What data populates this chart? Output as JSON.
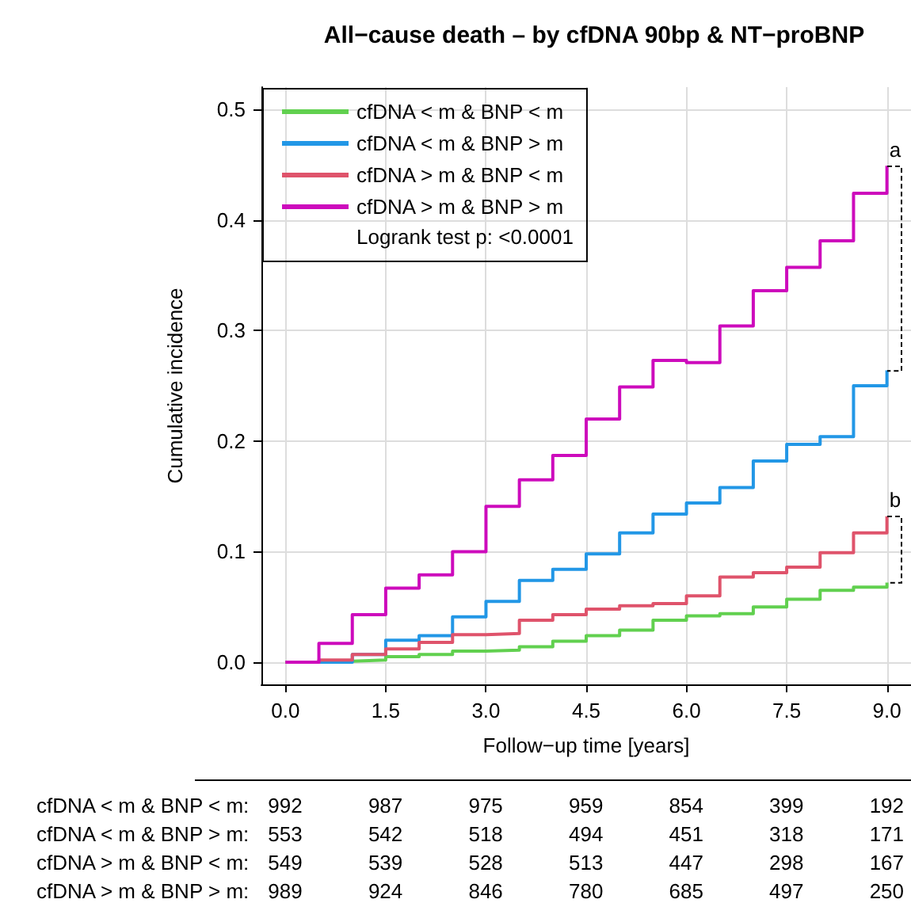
{
  "chart_data": {
    "type": "step",
    "title": "All−cause death – by cfDNA 90bp & NT−proBNP",
    "xlabel": "Follow−up time [years]",
    "ylabel": "Cumulative incidence",
    "x": [
      0,
      0.5,
      1,
      1.5,
      2,
      2.5,
      3,
      3.5,
      4,
      4.5,
      5,
      5.5,
      6,
      6.5,
      7,
      7.5,
      8,
      8.5,
      9
    ],
    "series": [
      {
        "name": "cfDNA < m & BNP < m",
        "color": "#61d04f",
        "values": [
          0,
          0.001,
          0.002,
          0.005,
          0.007,
          0.01,
          0.011,
          0.014,
          0.019,
          0.024,
          0.029,
          0.038,
          0.042,
          0.044,
          0.05,
          0.057,
          0.065,
          0.068,
          0.072
        ]
      },
      {
        "name": "cfDNA < m & BNP > m",
        "color": "#2297e6",
        "values": [
          0,
          0,
          0.007,
          0.02,
          0.024,
          0.041,
          0.055,
          0.074,
          0.084,
          0.098,
          0.117,
          0.134,
          0.144,
          0.158,
          0.182,
          0.197,
          0.204,
          0.25,
          0.264
        ]
      },
      {
        "name": "cfDNA > m & BNP < m",
        "color": "#df536b",
        "values": [
          0,
          0.002,
          0.007,
          0.012,
          0.018,
          0.025,
          0.026,
          0.038,
          0.043,
          0.048,
          0.051,
          0.053,
          0.06,
          0.077,
          0.081,
          0.086,
          0.099,
          0.117,
          0.132
        ]
      },
      {
        "name": "cfDNA > m & BNP > m",
        "color": "#cd0bbc",
        "values": [
          0,
          0.017,
          0.043,
          0.067,
          0.079,
          0.1,
          0.141,
          0.165,
          0.187,
          0.22,
          0.249,
          0.273,
          0.271,
          0.304,
          0.336,
          0.357,
          0.381,
          0.424,
          0.449
        ]
      }
    ],
    "xlim": [
      -0.36,
      9.36
    ],
    "xticks": [
      {
        "value": 0,
        "label": "0.0"
      },
      {
        "value": 1.5,
        "label": "1.5"
      },
      {
        "value": 3,
        "label": "3.0"
      },
      {
        "value": 4.5,
        "label": "4.5"
      },
      {
        "value": 6,
        "label": "6.0"
      },
      {
        "value": 7.5,
        "label": "7.5"
      },
      {
        "value": 9,
        "label": "9.0"
      }
    ],
    "ylim": [
      -0.02,
      0.52
    ],
    "yticks": [
      {
        "value": 0,
        "label": "0.0"
      },
      {
        "value": 0.1,
        "label": "0.1"
      },
      {
        "value": 0.2,
        "label": "0.2"
      },
      {
        "value": 0.3,
        "label": "0.3"
      },
      {
        "value": 0.4,
        "label": "0.4"
      },
      {
        "value": 0.5,
        "label": "0.5"
      }
    ],
    "grid": true,
    "legend": "top left",
    "marker": "none",
    "line_style": "solid",
    "annotations": [
      {
        "text": "a",
        "x": 9,
        "y": 0.449
      },
      {
        "text": "b",
        "x": 9,
        "y": 0.132
      },
      "Logrank test p: <0.0001",
      "cfDNA < m & BNP < m:",
      "992",
      "987",
      "975",
      "959",
      "854",
      "399",
      "192",
      "cfDNA < m & BNP > m:",
      "553",
      "542",
      "518",
      "494",
      "451",
      "318",
      "171",
      "cfDNA > m & BNP < m:",
      "549",
      "539",
      "528",
      "513",
      "447",
      "298",
      "167",
      "cfDNA > m & BNP > m:",
      "989",
      "924",
      "846",
      "780",
      "685",
      "497",
      "250"
    ]
  }
}
